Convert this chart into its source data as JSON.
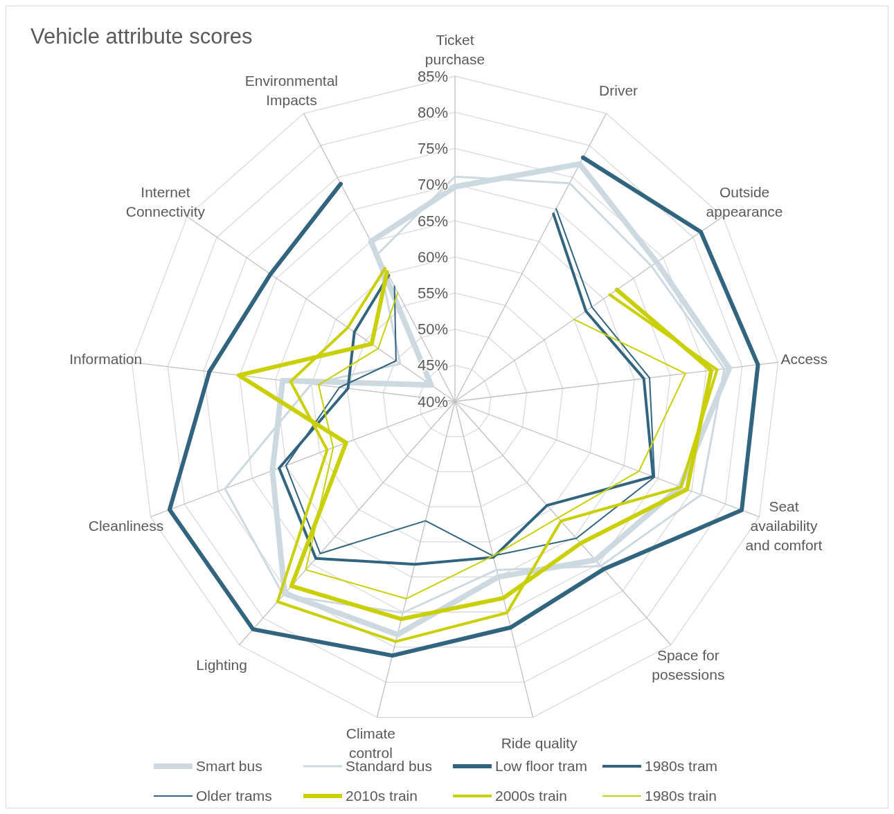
{
  "chart_data": {
    "type": "radar",
    "title": "Vehicle attribute scores",
    "categories": [
      "Ticket purchase",
      "Driver",
      "Outside appearance",
      "Access",
      "Seat availability and comfort",
      "Space for posessions",
      "Ride quality",
      "Climate control",
      "Lighting",
      "Cleanliness",
      "Information",
      "Internet Connectivity",
      "Environmental Impacts"
    ],
    "series": [
      {
        "name": "Smart bus",
        "color": "#cdd9e1",
        "values": [
          69.7,
          77.1,
          73.9,
          78.2,
          73.3,
          69.3,
          65,
          73.2,
          75.5,
          67,
          64,
          44,
          65
        ]
      },
      {
        "name": "Standard bus",
        "color": "#cdd9e1",
        "values": [
          71.1,
          74.1,
          73,
          77.5,
          76.4,
          70.4,
          64,
          70.1,
          75.8,
          74,
          60,
          49.2,
          63
        ]
      },
      {
        "name": "Low floor tram",
        "color": "#31657f",
        "values": [
          null,
          78.1,
          81.3,
          82.2,
          82.4,
          71,
          72.2,
          76.2,
          82.1,
          82.2,
          74.2,
          71,
          74
        ]
      },
      {
        "name": "1980s tram",
        "color": "#31657f",
        "values": [
          null,
          69.3,
          62,
          66.3,
          69.3,
          59.2,
          62.2,
          63.2,
          69,
          66,
          54.9,
          56.9,
          59.7
        ]
      },
      {
        "name": "Older trams",
        "color": "#31657f",
        "values": [
          null,
          70.1,
          63,
          67.1,
          69.5,
          65.3,
          62,
          57,
          68.1,
          65,
          56.1,
          49.9,
          58
        ]
      },
      {
        "name": "2010s train",
        "color": "#c9cf00",
        "values": [
          null,
          null,
          67.2,
          75.7,
          74.3,
          66.2,
          68,
          71,
          74.1,
          56.1,
          70.1,
          54,
          60.2
        ]
      },
      {
        "name": "2000s train",
        "color": "#c9cf00",
        "values": [
          null,
          null,
          66,
          76.5,
          73.4,
          62.1,
          70.1,
          74.2,
          77,
          58.9,
          62.9,
          58,
          60.8
        ]
      },
      {
        "name": "1980s train",
        "color": "#c9cf00",
        "values": [
          null,
          null,
          60,
          72.1,
          67.2,
          61.5,
          62,
          68.1,
          71.1,
          58,
          59,
          52.9,
          57
        ]
      }
    ],
    "ylim": [
      40,
      85
    ],
    "yticks": [
      {
        "value": 40,
        "label": "40%"
      },
      {
        "value": 45,
        "label": "45%"
      },
      {
        "value": 50,
        "label": "50%"
      },
      {
        "value": 55,
        "label": "55%"
      },
      {
        "value": 60,
        "label": "60%"
      },
      {
        "value": 65,
        "label": "65%"
      },
      {
        "value": 70,
        "label": "70%"
      },
      {
        "value": 75,
        "label": "75%"
      },
      {
        "value": 80,
        "label": "80%"
      },
      {
        "value": 85,
        "label": "85%"
      }
    ],
    "grid": true,
    "legend": "bottom"
  }
}
